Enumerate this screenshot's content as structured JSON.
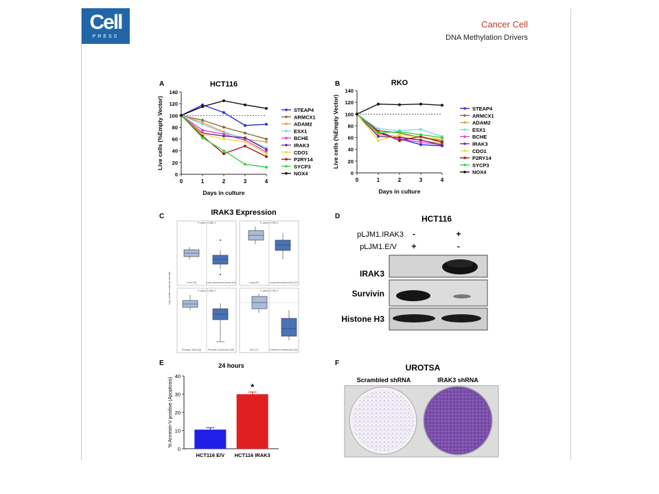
{
  "header": {
    "logo_text": "Cell",
    "logo_sub": "PRESS",
    "journal": "Cancer Cell",
    "subtitle": "DNA Methylation Drivers"
  },
  "panels": {
    "a_letter": "A",
    "b_letter": "B",
    "c_letter": "C",
    "d_letter": "D",
    "e_letter": "E",
    "f_letter": "F"
  },
  "chart_data": [
    {
      "type": "line",
      "panel": "A",
      "title": "HCT116",
      "xlabel": "Days in culture",
      "ylabel": "Live cells (%Empty Vector)",
      "x": [
        0,
        1,
        2,
        3,
        4
      ],
      "xlim": [
        0,
        4
      ],
      "ylim": [
        0,
        140
      ],
      "yticks": [
        0,
        20,
        40,
        60,
        80,
        100,
        120,
        140
      ],
      "reference_line": 100,
      "series": [
        {
          "name": "STEAP4",
          "color": "#2b2bd6",
          "values": [
            100,
            118,
            105,
            83,
            85
          ]
        },
        {
          "name": "ARMCX1",
          "color": "#8b6a3a",
          "values": [
            100,
            92,
            80,
            70,
            60
          ]
        },
        {
          "name": "ADAM2",
          "color": "#e0a050",
          "values": [
            100,
            88,
            72,
            60,
            55
          ]
        },
        {
          "name": "ESX1",
          "color": "#7fd6e8",
          "values": [
            100,
            85,
            70,
            62,
            45
          ]
        },
        {
          "name": "BCHE",
          "color": "#e040e0",
          "values": [
            100,
            75,
            68,
            58,
            38
          ]
        },
        {
          "name": "IRAK3",
          "color": "#7a2a8a",
          "values": [
            100,
            70,
            65,
            62,
            42
          ]
        },
        {
          "name": "CDO1",
          "color": "#e8e040",
          "values": [
            100,
            68,
            60,
            55,
            35
          ]
        },
        {
          "name": "P2RY14",
          "color": "#a01818",
          "values": [
            100,
            65,
            35,
            48,
            30
          ]
        },
        {
          "name": "SYCP3",
          "color": "#40d040",
          "values": [
            100,
            62,
            40,
            17,
            12
          ]
        },
        {
          "name": "NOX4",
          "color": "#111111",
          "values": [
            100,
            115,
            125,
            118,
            112
          ]
        }
      ]
    },
    {
      "type": "line",
      "panel": "B",
      "title": "RKO",
      "xlabel": "Days in culture",
      "ylabel": "Live cells (%Empty Vector)",
      "x": [
        0,
        1,
        2,
        3,
        4
      ],
      "xlim": [
        0,
        4
      ],
      "ylim": [
        0,
        140
      ],
      "yticks": [
        0,
        20,
        40,
        60,
        80,
        100,
        120,
        140
      ],
      "reference_line": 100,
      "series": [
        {
          "name": "STEAP4",
          "color": "#2b2bd6",
          "values": [
            100,
            70,
            58,
            48,
            46
          ]
        },
        {
          "name": "ARMCX1",
          "color": "#8b6a3a",
          "values": [
            100,
            72,
            68,
            60,
            55
          ]
        },
        {
          "name": "ADAM2",
          "color": "#e0a050",
          "values": [
            100,
            65,
            62,
            55,
            50
          ]
        },
        {
          "name": "ESX1",
          "color": "#7fd6e8",
          "values": [
            100,
            75,
            72,
            74,
            62
          ]
        },
        {
          "name": "BCHE",
          "color": "#e040e0",
          "values": [
            100,
            68,
            58,
            52,
            48
          ]
        },
        {
          "name": "IRAK3",
          "color": "#7a2a8a",
          "values": [
            100,
            62,
            60,
            56,
            47
          ]
        },
        {
          "name": "CDO1",
          "color": "#e8e040",
          "values": [
            100,
            55,
            65,
            60,
            58
          ]
        },
        {
          "name": "P2RY14",
          "color": "#a01818",
          "values": [
            100,
            70,
            55,
            62,
            52
          ]
        },
        {
          "name": "SYCP3",
          "color": "#40d040",
          "values": [
            100,
            68,
            70,
            65,
            60
          ]
        },
        {
          "name": "NOX4",
          "color": "#111111",
          "values": [
            100,
            117,
            116,
            117,
            115
          ]
        }
      ]
    },
    {
      "type": "bar",
      "panel": "E",
      "title": "24 hours",
      "ylabel": "% Annexin-V positive (Apoptosis)",
      "categories": [
        "HCT116 E/V",
        "HCT116 IRAK3"
      ],
      "values": [
        10.5,
        30
      ],
      "errors": [
        1,
        1.2
      ],
      "colors": [
        "#1f1fe8",
        "#e02020"
      ],
      "ylim": [
        0,
        40
      ],
      "yticks": [
        0,
        10,
        20,
        30,
        40
      ],
      "annotation": "*"
    }
  ],
  "panel_c": {
    "title": "IRAK3 Expression",
    "ylabel": "log2 median-centered intensity",
    "plots": [
      {
        "pvalue": "P-value: 4.38E-4",
        "label_left": "Colon (3)",
        "label_right": "Colon Adenocarcinoma (41)"
      },
      {
        "pvalue": "P-value: 5.78E-3",
        "label_left": "Lung (30)",
        "label_right": "Lung Adenocarcinoma (27)"
      },
      {
        "pvalue": "P-value: 9.05E-3",
        "label_left": "Prostate Gland (8)",
        "label_right": "Prostate Carcinoma (35)"
      },
      {
        "pvalue": "P-value: 3.75E-3",
        "label_left": "Skin (7)",
        "label_right": "Cutaneous Melanoma (45)"
      }
    ]
  },
  "panel_d": {
    "title": "HCT116",
    "row1_label": "pLJM1.IRAK3",
    "row1_vals": [
      "-",
      "+"
    ],
    "row2_label": "pLJM1.E/V",
    "row2_vals": [
      "+",
      "-"
    ],
    "blots": [
      "IRAK3",
      "Survivin",
      "Histone H3"
    ]
  },
  "panel_f": {
    "title": "UROTSA",
    "left_label": "Scrambled shRNA",
    "right_label": "IRAK3 shRNA"
  }
}
